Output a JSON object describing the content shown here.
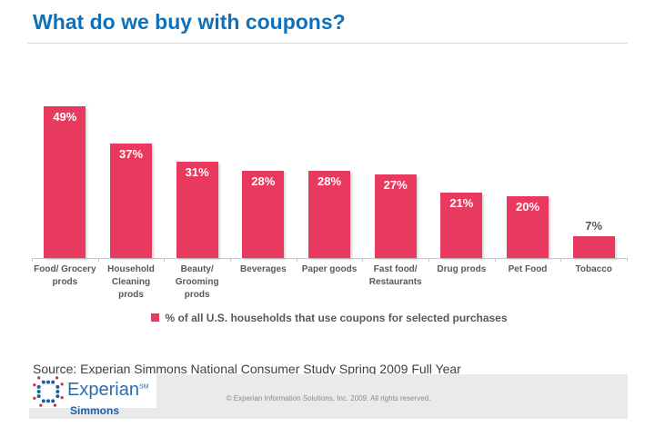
{
  "page": {
    "title": "What do we buy with coupons?"
  },
  "chart_data": {
    "type": "bar",
    "title": "What do we buy with coupons?",
    "categories": [
      "Food/ Grocery prods",
      "Household Cleaning prods",
      "Beauty/ Grooming prods",
      "Beverages",
      "Paper goods",
      "Fast food/ Restaurants",
      "Drug prods",
      "Pet Food",
      "Tobacco"
    ],
    "values": [
      49,
      37,
      31,
      28,
      28,
      27,
      21,
      20,
      7
    ],
    "value_labels": [
      "49%",
      "37%",
      "31%",
      "28%",
      "28%",
      "27%",
      "21%",
      "20%",
      "7%"
    ],
    "legend": "% of all U.S. households that use coupons for selected purchases",
    "legend_position": "bottom-center",
    "ylim": [
      0,
      55
    ],
    "grid": false,
    "bar_color": "#E8395F",
    "inside_label_color": "#FFFFFF",
    "outside_label_color": "#595959"
  },
  "source": {
    "text": "Source: Experian Simmons National Consumer Study Spring 2009 Full Year"
  },
  "footer": {
    "brand": "Experian",
    "brand_mark": "SM",
    "sub_brand": "Simmons",
    "copyright": "© Experian Information Solutions, Inc. 2009.  All rights reserved."
  },
  "colors": {
    "title_blue": "#1070B8",
    "bar_pink": "#E8395F",
    "text_gray": "#595959",
    "footer_gray": "#EAEAEA"
  }
}
